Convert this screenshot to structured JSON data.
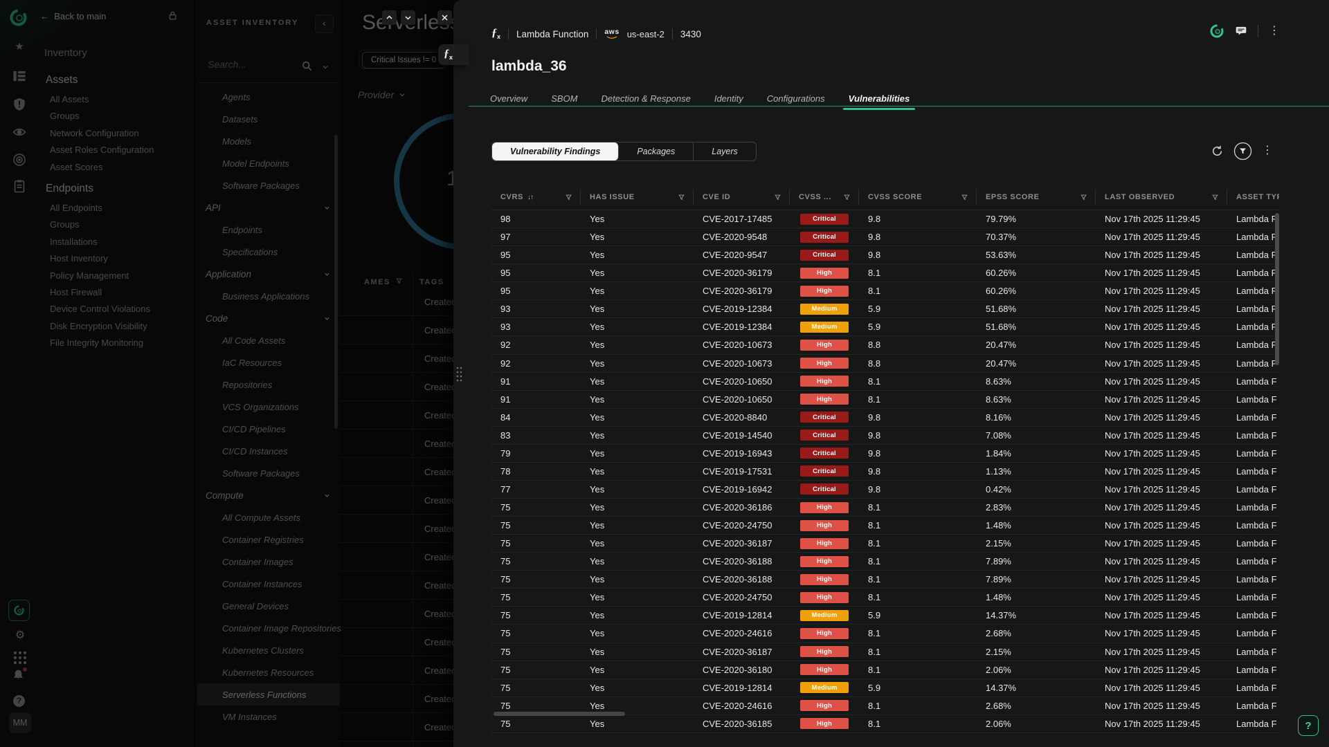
{
  "icons": {
    "back_arrow": "←",
    "star": "★",
    "gear": "⚙",
    "kebab": "⋮",
    "sort": "↓↑",
    "collapse": "‹",
    "close": "×",
    "question": "?",
    "help": "?",
    "avatar": "MM"
  },
  "colors": {
    "accent_green": "#34c08d",
    "donut_blue": "#2d7195",
    "critical": "#9a1919",
    "high": "#de5147",
    "medium": "#efa00b"
  },
  "sidebar": {
    "back_label": "Back to main",
    "section_title": "Inventory",
    "groups": [
      {
        "label": "Assets",
        "items": [
          "All Assets",
          "Groups",
          "Network Configuration",
          "Asset Roles Configuration",
          "Asset Scores"
        ]
      },
      {
        "label": "Endpoints",
        "items": [
          "All Endpoints",
          "Groups",
          "Installations",
          "Host Inventory",
          "Policy Management",
          "Host Firewall",
          "Device Control Violations",
          "Disk Encryption Visibility",
          "File Integrity Monitoring"
        ]
      }
    ],
    "avatar": "MM"
  },
  "inventory_panel": {
    "title": "ASSET INVENTORY",
    "search_placeholder": "Search...",
    "items": [
      {
        "label": "Agents",
        "type": "item"
      },
      {
        "label": "Datasets",
        "type": "item"
      },
      {
        "label": "Models",
        "type": "item"
      },
      {
        "label": "Model Endpoints",
        "type": "item"
      },
      {
        "label": "Software Packages",
        "type": "item"
      },
      {
        "label": "API",
        "type": "group"
      },
      {
        "label": "Endpoints",
        "type": "item"
      },
      {
        "label": "Specifications",
        "type": "item"
      },
      {
        "label": "Application",
        "type": "group"
      },
      {
        "label": "Business Applications",
        "type": "item"
      },
      {
        "label": "Code",
        "type": "group"
      },
      {
        "label": "All Code Assets",
        "type": "item"
      },
      {
        "label": "IaC Resources",
        "type": "item"
      },
      {
        "label": "Repositories",
        "type": "item"
      },
      {
        "label": "VCS Organizations",
        "type": "item"
      },
      {
        "label": "CI/CD Pipelines",
        "type": "item"
      },
      {
        "label": "CI/CD Instances",
        "type": "item"
      },
      {
        "label": "Software Packages",
        "type": "item"
      },
      {
        "label": "Compute",
        "type": "group"
      },
      {
        "label": "All Compute Assets",
        "type": "item"
      },
      {
        "label": "Container Registries",
        "type": "item"
      },
      {
        "label": "Container Images",
        "type": "item"
      },
      {
        "label": "Container Instances",
        "type": "item"
      },
      {
        "label": "General Devices",
        "type": "item"
      },
      {
        "label": "Container Image Repositories",
        "type": "item"
      },
      {
        "label": "Kubernetes Clusters",
        "type": "item"
      },
      {
        "label": "Kubernetes Resources",
        "type": "item"
      },
      {
        "label": "Serverless Functions",
        "type": "item",
        "selected": true
      },
      {
        "label": "VM Instances",
        "type": "item"
      }
    ]
  },
  "background_page": {
    "title": "Serverless",
    "filter_chip": "Critical Issues != 0",
    "provider_label": "Provider",
    "donut_value": "10",
    "table": {
      "col1": "AMES",
      "col2": "TAGS",
      "row_text": "Created",
      "row_count": 16
    }
  },
  "modal": {
    "asset_type_label": "Lambda Function",
    "aws_label": "aws",
    "region": "us-east-2",
    "count": "3430",
    "title": "lambda_36",
    "tabs": [
      {
        "label": "Overview"
      },
      {
        "label": "SBOM"
      },
      {
        "label": "Detection & Response"
      },
      {
        "label": "Identity"
      },
      {
        "label": "Configurations"
      },
      {
        "label": "Vulnerabilities",
        "active": true
      }
    ],
    "subtabs": [
      {
        "label": "Vulnerability Findings",
        "active": true
      },
      {
        "label": "Packages"
      },
      {
        "label": "Layers"
      }
    ],
    "table": {
      "headers": [
        {
          "label": "CVRS",
          "sort": true,
          "filter": true
        },
        {
          "label": "HAS ISSUE",
          "filter": true
        },
        {
          "label": "CVE ID",
          "filter": true
        },
        {
          "label": "CVSS ...",
          "filter": true
        },
        {
          "label": "CVSS SCORE",
          "filter": true
        },
        {
          "label": "EPSS SCORE",
          "filter": true
        },
        {
          "label": "LAST OBSERVED",
          "filter": true
        },
        {
          "label": "ASSET TYP",
          "filter": false
        }
      ],
      "severity_colors": {
        "Critical": "#9a1919",
        "High": "#de5147",
        "Medium": "#efa00b"
      },
      "row_common": {
        "last_observed": "Nov 17th 2025 11:29:45",
        "asset_type": "Lambda F"
      },
      "rows": [
        [
          "98",
          "Yes",
          "CVE-2017-17485",
          "Critical",
          "9.8",
          "79.79%"
        ],
        [
          "97",
          "Yes",
          "CVE-2020-9548",
          "Critical",
          "9.8",
          "70.37%"
        ],
        [
          "95",
          "Yes",
          "CVE-2020-9547",
          "Critical",
          "9.8",
          "53.63%"
        ],
        [
          "95",
          "Yes",
          "CVE-2020-36179",
          "High",
          "8.1",
          "60.26%"
        ],
        [
          "95",
          "Yes",
          "CVE-2020-36179",
          "High",
          "8.1",
          "60.26%"
        ],
        [
          "93",
          "Yes",
          "CVE-2019-12384",
          "Medium",
          "5.9",
          "51.68%"
        ],
        [
          "93",
          "Yes",
          "CVE-2019-12384",
          "Medium",
          "5.9",
          "51.68%"
        ],
        [
          "92",
          "Yes",
          "CVE-2020-10673",
          "High",
          "8.8",
          "20.47%"
        ],
        [
          "92",
          "Yes",
          "CVE-2020-10673",
          "High",
          "8.8",
          "20.47%"
        ],
        [
          "91",
          "Yes",
          "CVE-2020-10650",
          "High",
          "8.1",
          "8.63%"
        ],
        [
          "91",
          "Yes",
          "CVE-2020-10650",
          "High",
          "8.1",
          "8.63%"
        ],
        [
          "84",
          "Yes",
          "CVE-2020-8840",
          "Critical",
          "9.8",
          "8.16%"
        ],
        [
          "83",
          "Yes",
          "CVE-2019-14540",
          "Critical",
          "9.8",
          "7.08%"
        ],
        [
          "79",
          "Yes",
          "CVE-2019-16943",
          "Critical",
          "9.8",
          "1.84%"
        ],
        [
          "78",
          "Yes",
          "CVE-2019-17531",
          "Critical",
          "9.8",
          "1.13%"
        ],
        [
          "77",
          "Yes",
          "CVE-2019-16942",
          "Critical",
          "9.8",
          "0.42%"
        ],
        [
          "75",
          "Yes",
          "CVE-2020-36186",
          "High",
          "8.1",
          "2.83%"
        ],
        [
          "75",
          "Yes",
          "CVE-2020-24750",
          "High",
          "8.1",
          "1.48%"
        ],
        [
          "75",
          "Yes",
          "CVE-2020-36187",
          "High",
          "8.1",
          "2.15%"
        ],
        [
          "75",
          "Yes",
          "CVE-2020-36188",
          "High",
          "8.1",
          "7.89%"
        ],
        [
          "75",
          "Yes",
          "CVE-2020-36188",
          "High",
          "8.1",
          "7.89%"
        ],
        [
          "75",
          "Yes",
          "CVE-2020-24750",
          "High",
          "8.1",
          "1.48%"
        ],
        [
          "75",
          "Yes",
          "CVE-2019-12814",
          "Medium",
          "5.9",
          "14.37%"
        ],
        [
          "75",
          "Yes",
          "CVE-2020-24616",
          "High",
          "8.1",
          "2.68%"
        ],
        [
          "75",
          "Yes",
          "CVE-2020-36187",
          "High",
          "8.1",
          "2.15%"
        ],
        [
          "75",
          "Yes",
          "CVE-2020-36180",
          "High",
          "8.1",
          "2.06%"
        ],
        [
          "75",
          "Yes",
          "CVE-2019-12814",
          "Medium",
          "5.9",
          "14.37%"
        ],
        [
          "75",
          "Yes",
          "CVE-2020-24616",
          "High",
          "8.1",
          "2.68%"
        ],
        [
          "75",
          "Yes",
          "CVE-2020-36185",
          "High",
          "8.1",
          "2.06%"
        ]
      ]
    }
  }
}
